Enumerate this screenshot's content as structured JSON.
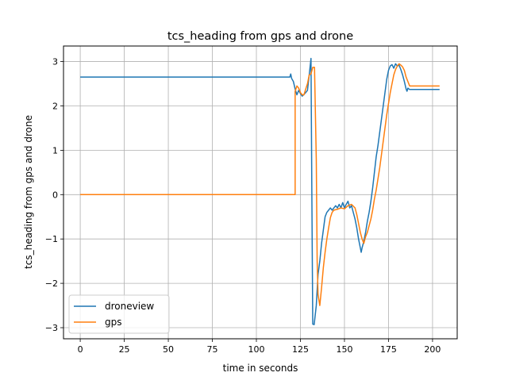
{
  "chart_data": {
    "type": "line",
    "title": "tcs_heading from gps and drone",
    "xlabel": "time in seconds",
    "ylabel": "tcs_heading from gps and drone",
    "xlim": [
      -9.5,
      214
    ],
    "ylim": [
      -3.25,
      3.35
    ],
    "xticks": [
      0,
      25,
      50,
      75,
      100,
      125,
      150,
      175,
      200
    ],
    "yticks": [
      -3,
      -2,
      -1,
      0,
      1,
      2,
      3
    ],
    "xtick_labels": [
      "0",
      "25",
      "50",
      "75",
      "100",
      "125",
      "150",
      "175",
      "200"
    ],
    "ytick_labels": [
      "−3",
      "−2",
      "−1",
      "0",
      "1",
      "2",
      "3"
    ],
    "grid": true,
    "legend_position": "lower-left",
    "series": [
      {
        "name": "droneview",
        "color": "#1f77b4",
        "points": [
          [
            0,
            2.65
          ],
          [
            119,
            2.65
          ],
          [
            119.5,
            2.72
          ],
          [
            120,
            2.62
          ],
          [
            121,
            2.55
          ],
          [
            122,
            2.38
          ],
          [
            123,
            2.25
          ],
          [
            124,
            2.35
          ],
          [
            125,
            2.28
          ],
          [
            126,
            2.22
          ],
          [
            127,
            2.26
          ],
          [
            128,
            2.3
          ],
          [
            129,
            2.35
          ],
          [
            130,
            2.7
          ],
          [
            131,
            3.07
          ],
          [
            131.5,
            -0.05
          ],
          [
            132,
            -2.92
          ],
          [
            132.8,
            -2.93
          ],
          [
            134,
            -2.5
          ],
          [
            135,
            -1.8
          ],
          [
            136,
            -1.5
          ],
          [
            137,
            -1.1
          ],
          [
            138,
            -0.8
          ],
          [
            139,
            -0.5
          ],
          [
            140,
            -0.4
          ],
          [
            141,
            -0.35
          ],
          [
            142,
            -0.3
          ],
          [
            143,
            -0.35
          ],
          [
            144,
            -0.3
          ],
          [
            145,
            -0.25
          ],
          [
            146,
            -0.3
          ],
          [
            147,
            -0.22
          ],
          [
            148,
            -0.3
          ],
          [
            149,
            -0.18
          ],
          [
            150,
            -0.3
          ],
          [
            151,
            -0.22
          ],
          [
            152,
            -0.15
          ],
          [
            153,
            -0.3
          ],
          [
            154,
            -0.25
          ],
          [
            155,
            -0.4
          ],
          [
            156,
            -0.55
          ],
          [
            157,
            -0.75
          ],
          [
            158,
            -1.0
          ],
          [
            159,
            -1.2
          ],
          [
            159.5,
            -1.3
          ],
          [
            160,
            -1.2
          ],
          [
            161,
            -1.05
          ],
          [
            162,
            -0.85
          ],
          [
            163,
            -0.6
          ],
          [
            164,
            -0.4
          ],
          [
            165,
            -0.15
          ],
          [
            166,
            0.15
          ],
          [
            167,
            0.5
          ],
          [
            168,
            0.85
          ],
          [
            169,
            1.1
          ],
          [
            170,
            1.4
          ],
          [
            171,
            1.7
          ],
          [
            172,
            2.0
          ],
          [
            173,
            2.3
          ],
          [
            174,
            2.6
          ],
          [
            175,
            2.8
          ],
          [
            176,
            2.9
          ],
          [
            177,
            2.93
          ],
          [
            178,
            2.85
          ],
          [
            179,
            2.95
          ],
          [
            180,
            2.9
          ],
          [
            181,
            2.92
          ],
          [
            182,
            2.82
          ],
          [
            183,
            2.7
          ],
          [
            184,
            2.55
          ],
          [
            185,
            2.38
          ],
          [
            185.5,
            2.33
          ],
          [
            186,
            2.4
          ],
          [
            187,
            2.37
          ],
          [
            204,
            2.37
          ]
        ]
      },
      {
        "name": "gps",
        "color": "#ff7f0e",
        "points": [
          [
            0,
            0.0
          ],
          [
            122,
            0.0
          ],
          [
            122,
            2.33
          ],
          [
            123,
            2.45
          ],
          [
            124,
            2.4
          ],
          [
            125,
            2.3
          ],
          [
            126,
            2.25
          ],
          [
            127,
            2.25
          ],
          [
            128,
            2.38
          ],
          [
            129,
            2.5
          ],
          [
            130,
            2.7
          ],
          [
            131,
            2.72
          ],
          [
            132,
            2.87
          ],
          [
            133,
            2.87
          ],
          [
            134,
            0.8
          ],
          [
            134.5,
            -1.5
          ],
          [
            135,
            -2.25
          ],
          [
            136,
            -2.5
          ],
          [
            137,
            -2.1
          ],
          [
            138,
            -1.65
          ],
          [
            139,
            -1.3
          ],
          [
            140,
            -1.0
          ],
          [
            141,
            -0.75
          ],
          [
            142,
            -0.52
          ],
          [
            143,
            -0.4
          ],
          [
            144,
            -0.35
          ],
          [
            146,
            -0.33
          ],
          [
            148,
            -0.3
          ],
          [
            150,
            -0.32
          ],
          [
            152,
            -0.25
          ],
          [
            154,
            -0.22
          ],
          [
            156,
            -0.3
          ],
          [
            157,
            -0.45
          ],
          [
            158,
            -0.65
          ],
          [
            159,
            -0.85
          ],
          [
            160,
            -1.0
          ],
          [
            161,
            -1.1
          ],
          [
            162,
            -0.95
          ],
          [
            163,
            -0.85
          ],
          [
            164,
            -0.7
          ],
          [
            165,
            -0.55
          ],
          [
            166,
            -0.35
          ],
          [
            167,
            -0.1
          ],
          [
            168,
            0.1
          ],
          [
            169,
            0.35
          ],
          [
            170,
            0.6
          ],
          [
            171,
            0.9
          ],
          [
            172,
            1.2
          ],
          [
            173,
            1.5
          ],
          [
            174,
            1.8
          ],
          [
            175,
            2.05
          ],
          [
            176,
            2.3
          ],
          [
            177,
            2.5
          ],
          [
            178,
            2.7
          ],
          [
            179,
            2.82
          ],
          [
            180,
            2.9
          ],
          [
            181,
            2.95
          ],
          [
            182,
            2.92
          ],
          [
            183,
            2.88
          ],
          [
            184,
            2.8
          ],
          [
            185,
            2.65
          ],
          [
            186,
            2.55
          ],
          [
            187,
            2.45
          ],
          [
            204,
            2.45
          ]
        ]
      }
    ]
  }
}
